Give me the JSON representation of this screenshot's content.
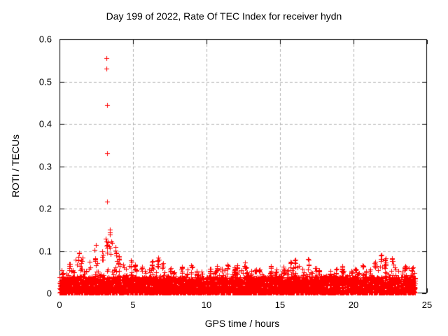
{
  "page": {
    "background": "#ffffff",
    "text_color": "#000000"
  },
  "chart_data": {
    "type": "scatter",
    "title": "Day 199 of 2022, Rate Of TEC Index for receiver hydn",
    "xlabel": "GPS time / hours",
    "ylabel": "ROTI / TECUs",
    "xlim": [
      0,
      25
    ],
    "ylim": [
      0,
      0.6
    ],
    "x_ticks": [
      0,
      5,
      10,
      15,
      20,
      25
    ],
    "y_ticks": [
      0,
      0.1,
      0.2,
      0.3,
      0.4,
      0.5,
      0.6
    ],
    "grid": {
      "show": true,
      "color": "#b0b0b0",
      "dash": [
        4,
        3
      ]
    },
    "axis_color": "#000000",
    "legend": "none",
    "series": [
      {
        "name": "ROTI",
        "marker": "+",
        "marker_size": 7,
        "color": "#ff0000",
        "outlier_points": [
          [
            3.2,
            0.556
          ],
          [
            3.2,
            0.531
          ],
          [
            3.22,
            0.444
          ],
          [
            3.25,
            0.331
          ],
          [
            3.25,
            0.217
          ],
          [
            3.42,
            0.15
          ],
          [
            3.42,
            0.143
          ],
          [
            3.45,
            0.139
          ],
          [
            3.16,
            0.129
          ],
          [
            3.52,
            0.123
          ],
          [
            3.37,
            0.111
          ],
          [
            3.41,
            0.108
          ],
          [
            3.49,
            0.093
          ],
          [
            2.48,
            0.114
          ],
          [
            2.4,
            0.103
          ],
          [
            3.55,
            0.119
          ]
        ],
        "dense_band": {
          "description": "dense noise band of + markers hugging 0-0.04 TECU across all 24h with sporadic spikes",
          "x_start": 0,
          "x_end": 24.2,
          "bin_hours": 0.5,
          "core_top": 0.038,
          "points_per_bin": 120,
          "seed": 1999,
          "envelope_max": [
            0.055,
            0.075,
            0.098,
            0.085,
            0.092,
            0.1,
            0.125,
            0.12,
            0.09,
            0.078,
            0.072,
            0.068,
            0.078,
            0.088,
            0.072,
            0.065,
            0.062,
            0.068,
            0.055,
            0.052,
            0.06,
            0.065,
            0.072,
            0.065,
            0.07,
            0.075,
            0.065,
            0.06,
            0.065,
            0.058,
            0.068,
            0.075,
            0.08,
            0.085,
            0.062,
            0.058,
            0.055,
            0.06,
            0.065,
            0.058,
            0.062,
            0.07,
            0.078,
            0.092,
            0.088,
            0.09,
            0.072,
            0.075,
            0.07
          ]
        }
      }
    ]
  }
}
